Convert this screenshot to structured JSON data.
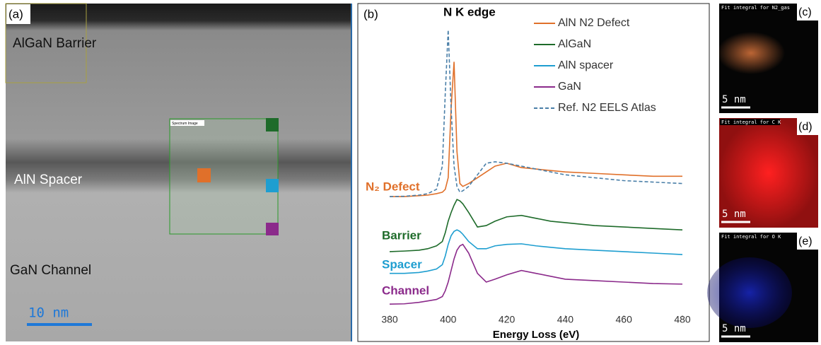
{
  "panel_a": {
    "label": "(a)",
    "regions": [
      "AlGaN Barrier",
      "AlN Spacer",
      "GaN Channel"
    ],
    "scale_bar": "10 nm",
    "box_label": "Spectrum Image"
  },
  "chart_data": {
    "type": "line",
    "panel_label": "(b)",
    "x_label": "Energy Loss (eV)",
    "x": [
      380,
      385,
      390,
      393,
      396,
      398,
      399,
      400,
      401,
      402,
      403,
      404,
      405,
      407,
      410,
      413,
      416,
      420,
      425,
      430,
      435,
      440,
      450,
      460,
      470,
      480
    ],
    "xlim": [
      380,
      480
    ],
    "xticks": [
      380,
      400,
      420,
      440,
      460,
      480
    ],
    "ylim": [
      0,
      100
    ],
    "series": [
      {
        "name": "AlN N2 Defect",
        "color": "#e0702a",
        "dashed": false,
        "values": [
          39.5,
          39.5,
          39.8,
          40,
          40.5,
          41,
          42,
          46,
          70,
          86,
          55,
          44,
          43,
          44,
          46,
          48,
          50,
          51,
          49.5,
          49,
          48.5,
          48,
          47.5,
          47,
          46.5,
          46.5
        ]
      },
      {
        "name": "AlGaN",
        "color": "#1e6b2a",
        "dashed": false,
        "values": [
          20.5,
          20.7,
          21,
          21.5,
          22.5,
          24,
          27,
          31,
          34,
          36.5,
          38.5,
          38,
          37,
          34,
          29,
          29.5,
          31,
          32.5,
          33,
          32,
          31,
          30.5,
          29.5,
          29,
          28.5,
          28
        ]
      },
      {
        "name": "AlN spacer",
        "color": "#1e9ed0",
        "dashed": false,
        "values": [
          13,
          13,
          13.3,
          13.8,
          14.5,
          16,
          19,
          23,
          26,
          27.5,
          28,
          27.5,
          26.5,
          24,
          21.5,
          21.5,
          22.5,
          23,
          23.2,
          22.5,
          22,
          21.5,
          21,
          20.5,
          20,
          19.5
        ]
      },
      {
        "name": "GaN",
        "color": "#8b2a8b",
        "dashed": false,
        "values": [
          2.4,
          2.5,
          3,
          3.5,
          4,
          5,
          7,
          10,
          14,
          18,
          21,
          22.5,
          23,
          20,
          13,
          10,
          11,
          12.5,
          14,
          13,
          12,
          11,
          10.5,
          10,
          9.5,
          9.3
        ]
      },
      {
        "name": "Ref. N2 EELS Atlas",
        "color": "#4a7fa8",
        "dashed": true,
        "values": [
          39.5,
          39.6,
          40,
          40.5,
          42,
          50,
          75,
          97,
          70,
          50,
          43,
          41,
          41.5,
          43,
          47,
          51,
          51.5,
          51,
          50,
          49,
          48,
          47,
          46,
          45,
          44.5,
          44
        ]
      }
    ],
    "annotations": [
      {
        "text": "N K edge",
        "color": "#000000"
      },
      {
        "text": "N₂ Defect",
        "color": "#e0702a"
      },
      {
        "text": "Barrier",
        "color": "#1e6b2a"
      },
      {
        "text": "Spacer",
        "color": "#1e9ed0"
      },
      {
        "text": "Channel",
        "color": "#8b2a8b"
      }
    ]
  },
  "maps": [
    {
      "label": "(c)",
      "title": "Fit integral for N2_gas",
      "scale_bar": "5 nm",
      "color": "#d0703a"
    },
    {
      "label": "(d)",
      "title": "Fit integral for C K",
      "scale_bar": "5 nm",
      "color": "#e01010"
    },
    {
      "label": "(e)",
      "title": "Fit integral for O K",
      "scale_bar": "5 nm",
      "color": "#1a2ad0"
    }
  ]
}
